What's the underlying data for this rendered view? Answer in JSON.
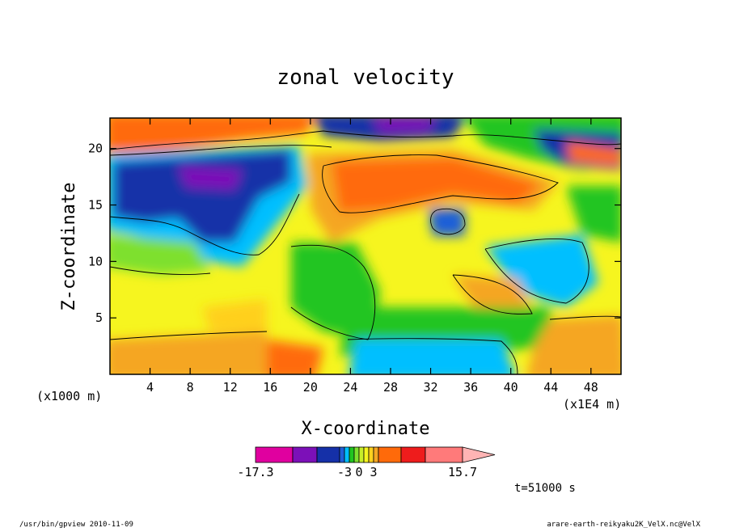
{
  "chart_data": {
    "type": "heatmap",
    "title": "zonal velocity",
    "xlabel": "X-coordinate",
    "ylabel": "Z-coordinate",
    "x_unit_left": "(x1000 m)",
    "x_unit_right": "(x1E4 m)",
    "xlim": [
      0,
      51
    ],
    "ylim": [
      0,
      22.7
    ],
    "x_ticks": [
      4,
      8,
      12,
      16,
      20,
      24,
      28,
      32,
      36,
      40,
      44,
      48
    ],
    "y_ticks": [
      5,
      10,
      15,
      20
    ],
    "grid": false,
    "colorbar": {
      "labels": [
        "-17.3",
        "-3",
        "0",
        "3",
        "15.7"
      ],
      "min": -17.3,
      "max": 15.7,
      "colors": [
        "#e0009f",
        "#7c10b8",
        "#1530a8",
        "#1f5fd8",
        "#00bfff",
        "#21c521",
        "#7ee02e",
        "#c8ee2a",
        "#f6f51f",
        "#ffd01f",
        "#f5a623",
        "#ff6a0a",
        "#ee1c1c",
        "#ff7a7a",
        "#ffb4b4"
      ]
    },
    "annotation": "t=51000 s"
  },
  "footer": {
    "left": "/usr/bin/gpview   2010-11-09",
    "right": "arare-earth-reikyaku2K_VelX.nc@VelX"
  }
}
